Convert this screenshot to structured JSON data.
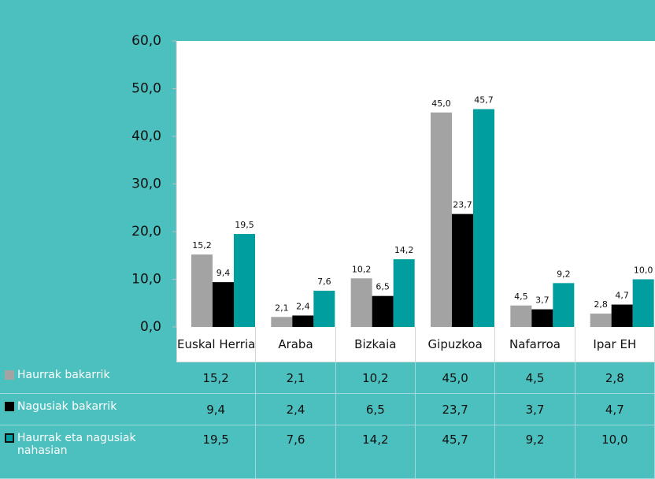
{
  "chart_data": {
    "type": "bar",
    "categories": [
      "Euskal Herria",
      "Araba",
      "Bizkaia",
      "Gipuzkoa",
      "Nafarroa",
      "Ipar EH"
    ],
    "series": [
      {
        "name": "Haurrak bakarrik",
        "color": "#a3a3a3",
        "values": [
          15.2,
          2.1,
          10.2,
          45.0,
          4.5,
          2.8
        ],
        "value_labels": [
          "15,2",
          "2,1",
          "10,2",
          "45,0",
          "4,5",
          "2,8"
        ]
      },
      {
        "name": "Nagusiak bakarrik",
        "color": "#000000",
        "values": [
          9.4,
          2.4,
          6.5,
          23.7,
          3.7,
          4.7
        ],
        "value_labels": [
          "9,4",
          "2,4",
          "6,5",
          "23,7",
          "3,7",
          "4,7"
        ]
      },
      {
        "name": "Haurrak eta nagusiak nahasian",
        "color": "#009e9e",
        "values": [
          19.5,
          7.6,
          14.2,
          45.7,
          9.2,
          10.0
        ],
        "value_labels": [
          "19,5",
          "7,6",
          "14,2",
          "45,7",
          "9,2",
          "10,0"
        ]
      }
    ],
    "ylim": [
      0,
      60
    ],
    "yticks": [
      {
        "value": 0,
        "label": "0,0"
      },
      {
        "value": 10,
        "label": "10,0"
      },
      {
        "value": 20,
        "label": "20,0"
      },
      {
        "value": 30,
        "label": "30,0"
      },
      {
        "value": 40,
        "label": "40,0"
      },
      {
        "value": 50,
        "label": "50,0"
      },
      {
        "value": 60,
        "label": "60,0"
      }
    ],
    "grid": false
  }
}
